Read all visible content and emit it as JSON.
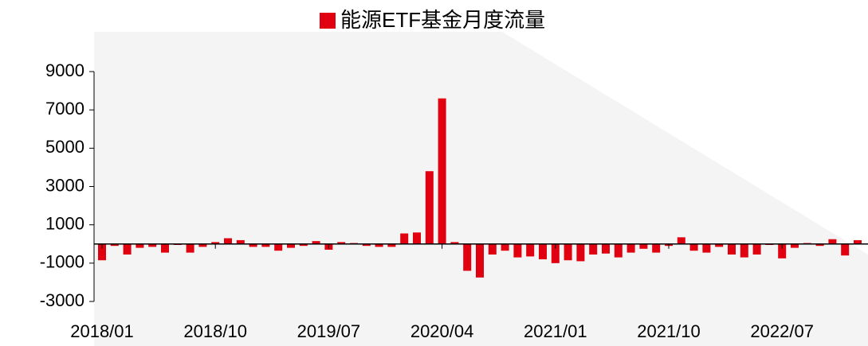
{
  "chart_data": {
    "type": "bar",
    "series": [
      {
        "name": "能源ETF基金月度流量",
        "color": "#e0000f",
        "values": [
          -850,
          -100,
          -550,
          -200,
          -150,
          -450,
          -50,
          -450,
          -150,
          100,
          300,
          200,
          -150,
          -150,
          -350,
          -200,
          -100,
          150,
          -300,
          100,
          50,
          -100,
          -150,
          -150,
          550,
          600,
          3800,
          7600,
          100,
          -1400,
          -1750,
          -550,
          -350,
          -700,
          -650,
          -800,
          -1000,
          -850,
          -900,
          -550,
          -500,
          -700,
          -450,
          -250,
          -450,
          -100,
          350,
          -350,
          -450,
          -150,
          -550,
          -700,
          -550,
          -50,
          -750,
          -200,
          50,
          -100,
          250,
          -600,
          200
        ]
      }
    ],
    "categories": [
      "2018/01",
      null,
      null,
      null,
      null,
      null,
      null,
      null,
      null,
      "2018/10",
      null,
      null,
      null,
      null,
      null,
      null,
      null,
      null,
      "2019/07",
      null,
      null,
      null,
      null,
      null,
      null,
      null,
      null,
      "2020/04",
      null,
      null,
      null,
      null,
      null,
      null,
      null,
      null,
      "2021/01",
      null,
      null,
      null,
      null,
      null,
      null,
      null,
      null,
      "2021/10",
      null,
      null,
      null,
      null,
      null,
      null,
      null,
      null,
      "2022/07",
      null,
      null,
      null,
      null,
      null,
      null
    ],
    "ylim": [
      -3000,
      9000
    ],
    "yticks": [
      -3000,
      -1000,
      1000,
      3000,
      5000,
      7000,
      9000
    ],
    "legend": "top"
  }
}
